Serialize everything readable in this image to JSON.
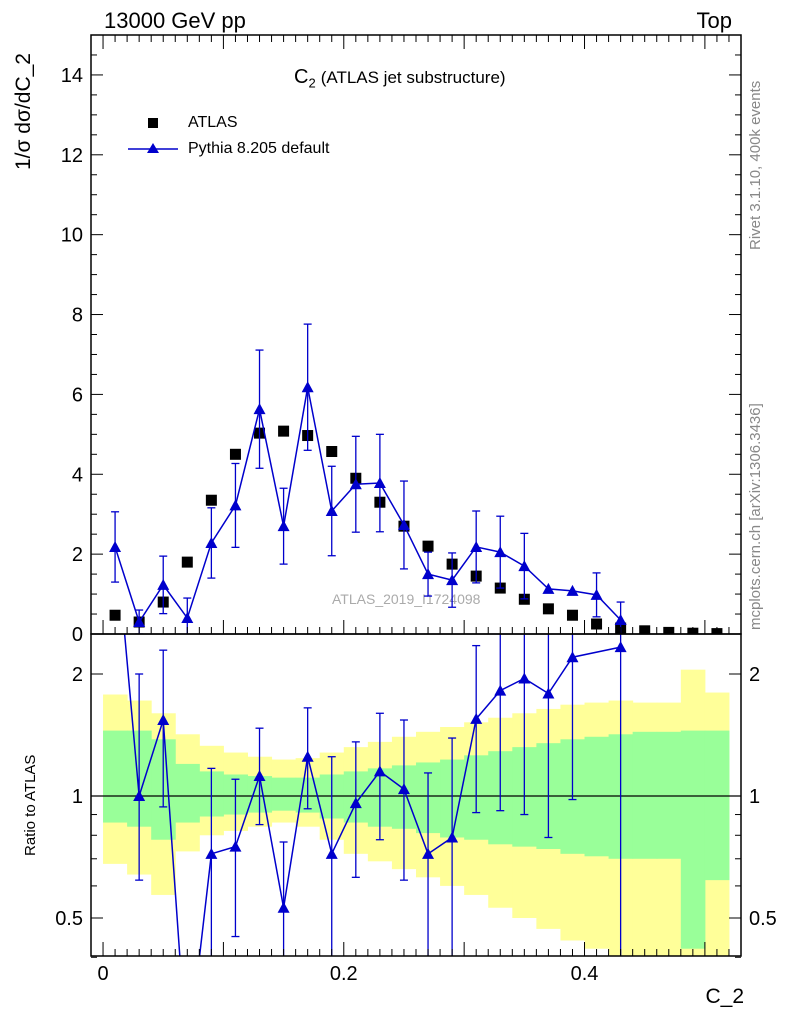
{
  "header": {
    "left": "13000 GeV pp",
    "right": "Top"
  },
  "side_labels": {
    "rivet": "Rivet 3.1.10,  400k events",
    "mcplots": "mcplots.cern.ch [arXiv:1306.3436]"
  },
  "plot_title": "(ATLAS jet substructure)",
  "plot_title_symbol": "C",
  "plot_title_sub": "2",
  "watermark": "ATLAS_2019_I1724098",
  "chart_data": [
    {
      "type": "scatter",
      "panel": "main",
      "ylabel": "1/σ dσ/dC_2",
      "xlim": [
        -0.01,
        0.53
      ],
      "ylim": [
        0,
        15
      ],
      "yticks": [
        0,
        2,
        4,
        6,
        8,
        10,
        12,
        14
      ],
      "legend_position": "top-left",
      "x": [
        0.01,
        0.03,
        0.05,
        0.07,
        0.09,
        0.11,
        0.13,
        0.15,
        0.17,
        0.19,
        0.21,
        0.23,
        0.25,
        0.27,
        0.29,
        0.31,
        0.33,
        0.35,
        0.37,
        0.39,
        0.41,
        0.43,
        0.45,
        0.47,
        0.49,
        0.51
      ],
      "series": [
        {
          "name": "ATLAS",
          "marker": "square",
          "color": "#000000",
          "values": [
            0.47,
            0.3,
            0.8,
            1.8,
            3.35,
            4.5,
            5.03,
            5.08,
            4.97,
            4.57,
            3.9,
            3.3,
            2.7,
            2.2,
            1.75,
            1.45,
            1.15,
            0.87,
            0.63,
            0.47,
            0.25,
            0.15,
            0.08,
            0.04,
            0.02,
            0.01
          ]
        },
        {
          "name": "Pythia 8.205 default",
          "marker": "triangle",
          "color": "#0000cc",
          "values": [
            2.18,
            0.3,
            1.23,
            0.4,
            2.28,
            3.22,
            5.63,
            2.7,
            6.18,
            3.08,
            3.75,
            3.78,
            2.73,
            1.5,
            1.35,
            2.18,
            2.05,
            1.7,
            1.13,
            1.08,
            0.98,
            0.35,
            0.0,
            0.0,
            0.0,
            0.0
          ],
          "errors": [
            0.88,
            0.3,
            0.72,
            0.5,
            0.88,
            1.05,
            1.48,
            0.95,
            1.58,
            1.12,
            1.2,
            1.22,
            1.1,
            0.55,
            0.68,
            0.9,
            0.9,
            0.82,
            0.0,
            0.0,
            0.55,
            0.45,
            0.0,
            0.0,
            0.0,
            0.0
          ]
        }
      ]
    },
    {
      "type": "line",
      "panel": "ratio",
      "xlabel": "C_2",
      "ylabel": "Ratio to ATLAS",
      "log_y": true,
      "xlim": [
        -0.01,
        0.53
      ],
      "ylim": [
        0.4,
        2.3
      ],
      "yticks": [
        0.5,
        1,
        2
      ],
      "xticks": [
        0,
        0.2,
        0.4
      ],
      "bands": [
        {
          "name": "ATLAS uncertainty (outer)",
          "color": "#ffff99",
          "lower": [
            0.68,
            0.64,
            0.57,
            0.73,
            0.8,
            0.82,
            0.84,
            0.86,
            0.84,
            0.78,
            0.72,
            0.69,
            0.66,
            0.63,
            0.6,
            0.57,
            0.53,
            0.5,
            0.47,
            0.44,
            0.42,
            0.4,
            0.4,
            0.4,
            0.36,
            0.38
          ],
          "upper": [
            1.78,
            1.72,
            1.6,
            1.42,
            1.33,
            1.28,
            1.25,
            1.23,
            1.24,
            1.28,
            1.32,
            1.36,
            1.4,
            1.44,
            1.48,
            1.52,
            1.56,
            1.6,
            1.64,
            1.68,
            1.7,
            1.72,
            1.7,
            1.7,
            2.05,
            1.8
          ]
        },
        {
          "name": "ATLAS uncertainty (inner)",
          "color": "#99ff99",
          "lower": [
            0.86,
            0.84,
            0.78,
            0.86,
            0.89,
            0.9,
            0.91,
            0.92,
            0.91,
            0.88,
            0.86,
            0.84,
            0.83,
            0.81,
            0.79,
            0.78,
            0.76,
            0.75,
            0.74,
            0.72,
            0.71,
            0.7,
            0.7,
            0.7,
            0.42,
            0.62
          ],
          "upper": [
            1.45,
            1.45,
            1.38,
            1.2,
            1.15,
            1.13,
            1.12,
            1.11,
            1.11,
            1.13,
            1.15,
            1.17,
            1.19,
            1.21,
            1.23,
            1.26,
            1.29,
            1.32,
            1.35,
            1.38,
            1.4,
            1.42,
            1.44,
            1.44,
            1.45,
            1.45
          ]
        }
      ],
      "series": [
        {
          "name": "Pythia 8.205 default",
          "color": "#0000cc",
          "x": [
            0.01,
            0.03,
            0.05,
            0.07,
            0.09,
            0.11,
            0.13,
            0.15,
            0.17,
            0.19,
            0.21,
            0.23,
            0.25,
            0.27,
            0.29,
            0.31,
            0.33,
            0.35,
            0.37,
            0.39,
            0.43
          ],
          "values": [
            4.6,
            1.0,
            1.54,
            0.22,
            0.72,
            0.75,
            1.12,
            0.53,
            1.25,
            0.72,
            0.96,
            1.15,
            1.04,
            0.72,
            0.79,
            1.55,
            1.82,
            1.95,
            1.79,
            2.2,
            2.33
          ],
          "err_low": [
            0,
            0.38,
            0.6,
            0,
            0.39,
            0.3,
            0.27,
            0.19,
            0.32,
            0.38,
            0.33,
            0.37,
            0.42,
            0.4,
            0.55,
            0.64,
            0.9,
            1.05,
            1.0,
            1.22,
            2.0
          ],
          "err_high": [
            0,
            1.0,
            0.75,
            0,
            0.45,
            0.35,
            0.35,
            0.24,
            0.4,
            0.53,
            0.4,
            0.45,
            0.5,
            0.42,
            0.6,
            0.8,
            1.0,
            1.0,
            1.0,
            1.0,
            1.0
          ]
        }
      ]
    }
  ]
}
